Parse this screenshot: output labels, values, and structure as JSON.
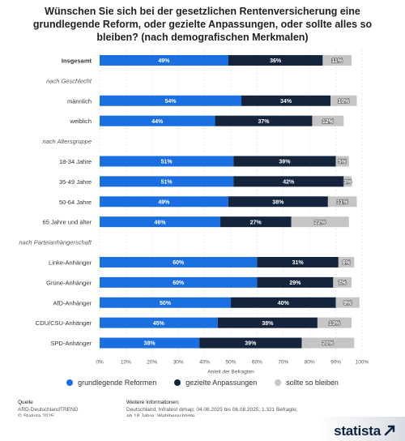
{
  "chart_data": {
    "type": "bar",
    "orientation": "horizontal",
    "stacked": true,
    "title": "Wünschen Sie sich bei der gesetzlichen Rentenversicherung eine grundlegende Reform, oder gezielte Anpassungen, oder sollte alles so bleiben? (nach demografischen Merkmalen)",
    "xlabel": "Anteil der Befragten",
    "xlim": [
      0,
      100
    ],
    "x_ticks": [
      "0%",
      "10%",
      "20%",
      "30%",
      "40%",
      "50%",
      "60%",
      "70%",
      "80%",
      "90%",
      "100%"
    ],
    "grid": true,
    "legend_position": "bottom",
    "rows": [
      {
        "label": "Insgesamt",
        "kind": "data",
        "bold": true,
        "values": [
          49,
          36,
          11
        ]
      },
      {
        "label": "nach Geschlecht",
        "kind": "group"
      },
      {
        "label": "männlich",
        "kind": "data",
        "values": [
          54,
          34,
          10
        ]
      },
      {
        "label": "weiblich",
        "kind": "data",
        "values": [
          44,
          37,
          12
        ]
      },
      {
        "label": "nach Altersgruppe",
        "kind": "group"
      },
      {
        "label": "18-34 Jahre",
        "kind": "data",
        "values": [
          51,
          39,
          5
        ]
      },
      {
        "label": "35-49 Jahre",
        "kind": "data",
        "values": [
          51,
          42,
          3
        ]
      },
      {
        "label": "50-64 Jahre",
        "kind": "data",
        "values": [
          49,
          38,
          11
        ]
      },
      {
        "label": "65 Jahre und älter",
        "kind": "data",
        "values": [
          46,
          27,
          22
        ]
      },
      {
        "label": "nach Parteianhängerschaft",
        "kind": "group"
      },
      {
        "label": "Linke-Anhänger",
        "kind": "data",
        "values": [
          60,
          31,
          6
        ]
      },
      {
        "label": "Grüne-Anhänger",
        "kind": "data",
        "values": [
          60,
          29,
          7
        ]
      },
      {
        "label": "AfD-Anhänger",
        "kind": "data",
        "values": [
          50,
          40,
          9
        ]
      },
      {
        "label": "CDU/CSU-Anhänger",
        "kind": "data",
        "values": [
          45,
          38,
          13
        ]
      },
      {
        "label": "SPD-Anhänger",
        "kind": "data",
        "values": [
          38,
          39,
          20
        ]
      }
    ],
    "series": [
      {
        "name": "grundlegende Reformen",
        "color": "#1a6fe0"
      },
      {
        "name": "gezielte Anpassungen",
        "color": "#14243d"
      },
      {
        "name": "sollte so bleiben",
        "color": "#c5c5c5"
      }
    ]
  },
  "footer": {
    "source_heading": "Quelle",
    "source_line1": "ARD-DeutschlandTREND",
    "source_line2": "© Statista 2025",
    "info_heading": "Weitere Informationen:",
    "info_line1": "Deutschland; Infratest dimap; 04.08.2025 bis 06.08.2025; 1.321 Befragte;",
    "info_line2": "ab 18 Jahre; Wahlberechtigte"
  },
  "brand": {
    "logo_text": "statista"
  }
}
